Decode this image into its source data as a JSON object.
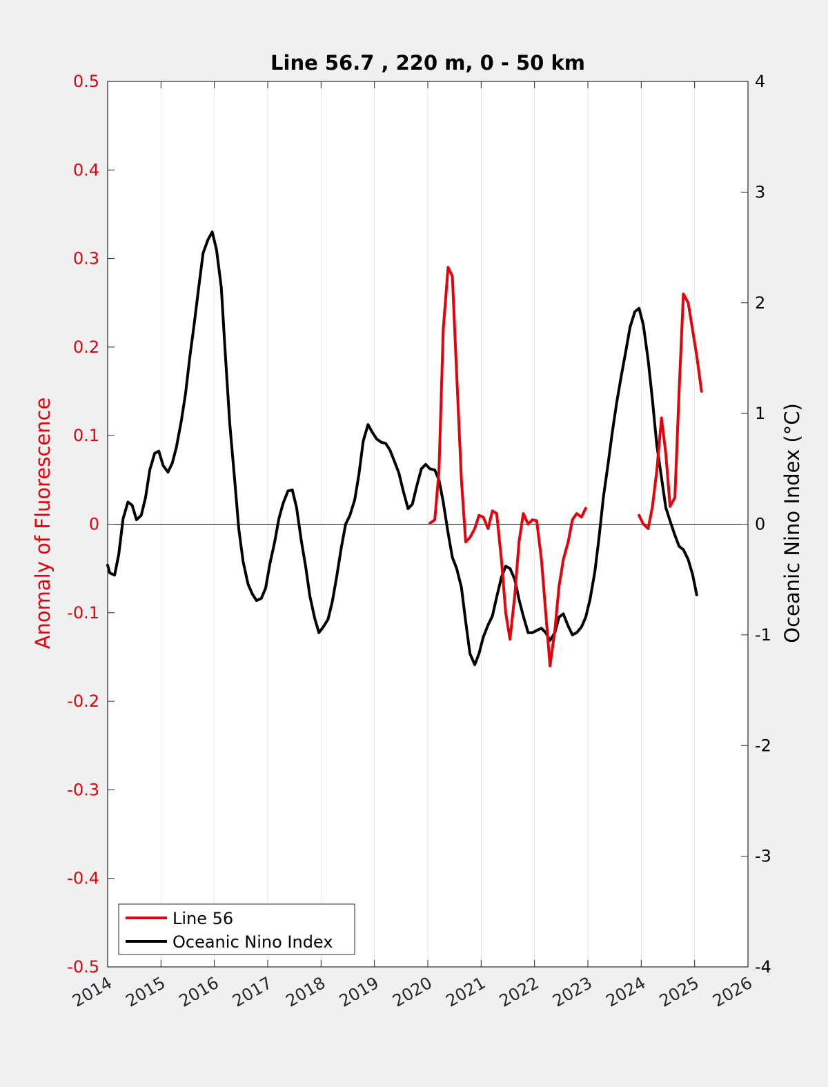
{
  "chart_data": {
    "type": "line",
    "title": "Line 56.7 , 220 m, 0 - 50 km",
    "ylabel_left": "Anomaly of Fluorescence",
    "ylabel_right": "Oceanic Nino Index (°C)",
    "xlim": [
      2014,
      2026
    ],
    "ylim_left": [
      -0.5,
      0.5
    ],
    "ylim_right": [
      -4,
      4
    ],
    "x_ticks": [
      "2014",
      "2015",
      "2016",
      "2017",
      "2018",
      "2019",
      "2020",
      "2021",
      "2022",
      "2023",
      "2024",
      "2025",
      "2026"
    ],
    "y_left_ticks": [
      "0.5",
      "0.4",
      "0.3",
      "0.2",
      "0.1",
      "0",
      "-0.1",
      "-0.2",
      "-0.3",
      "-0.4",
      "-0.5"
    ],
    "y_right_ticks": [
      "4",
      "3",
      "2",
      "1",
      "0",
      "-1",
      "-2",
      "-3",
      "-4"
    ],
    "grid": "vertical",
    "legend_position": "bottom-left",
    "colors": {
      "line56": "#e8000b",
      "oni": "#000000",
      "left_axis": "#e8000b",
      "right_axis": "#000000"
    },
    "series": [
      {
        "name": "Line 56",
        "axis": "left",
        "segments": [
          [
            [
              2020.04,
              0.001
            ],
            [
              2020.13,
              0.005
            ],
            [
              2020.21,
              0.06
            ],
            [
              2020.29,
              0.22
            ],
            [
              2020.38,
              0.29
            ],
            [
              2020.46,
              0.28
            ],
            [
              2020.54,
              0.17
            ],
            [
              2020.63,
              0.05
            ],
            [
              2020.71,
              -0.02
            ],
            [
              2020.79,
              -0.015
            ],
            [
              2020.88,
              -0.005
            ],
            [
              2020.96,
              0.01
            ],
            [
              2021.04,
              0.008
            ],
            [
              2021.13,
              -0.005
            ],
            [
              2021.21,
              0.015
            ],
            [
              2021.29,
              0.012
            ],
            [
              2021.38,
              -0.04
            ],
            [
              2021.46,
              -0.1
            ],
            [
              2021.54,
              -0.13
            ],
            [
              2021.63,
              -0.08
            ],
            [
              2021.71,
              -0.02
            ],
            [
              2021.79,
              0.012
            ],
            [
              2021.88,
              0.0
            ],
            [
              2021.96,
              0.005
            ],
            [
              2022.04,
              0.004
            ],
            [
              2022.13,
              -0.04
            ],
            [
              2022.21,
              -0.1
            ],
            [
              2022.29,
              -0.16
            ],
            [
              2022.38,
              -0.12
            ],
            [
              2022.46,
              -0.07
            ],
            [
              2022.54,
              -0.04
            ],
            [
              2022.63,
              -0.02
            ],
            [
              2022.71,
              0.005
            ],
            [
              2022.79,
              0.012
            ],
            [
              2022.88,
              0.008
            ],
            [
              2022.96,
              0.018
            ]
          ],
          [
            [
              2023.96,
              0.01
            ],
            [
              2024.04,
              0.0
            ],
            [
              2024.13,
              -0.005
            ],
            [
              2024.21,
              0.02
            ],
            [
              2024.29,
              0.06
            ],
            [
              2024.38,
              0.12
            ],
            [
              2024.46,
              0.08
            ],
            [
              2024.54,
              0.02
            ],
            [
              2024.63,
              0.03
            ],
            [
              2024.71,
              0.15
            ],
            [
              2024.79,
              0.26
            ],
            [
              2024.88,
              0.25
            ],
            [
              2024.96,
              0.22
            ],
            [
              2025.04,
              0.19
            ],
            [
              2025.13,
              0.15
            ]
          ]
        ]
      },
      {
        "name": "Oceanic Nino Index",
        "axis": "right",
        "segments": [
          [
            [
              2014.0,
              -0.37
            ],
            [
              2014.04,
              -0.44
            ],
            [
              2014.13,
              -0.46
            ],
            [
              2014.21,
              -0.27
            ],
            [
              2014.29,
              0.05
            ],
            [
              2014.38,
              0.2
            ],
            [
              2014.46,
              0.17
            ],
            [
              2014.54,
              0.04
            ],
            [
              2014.63,
              0.08
            ],
            [
              2014.71,
              0.24
            ],
            [
              2014.79,
              0.49
            ],
            [
              2014.88,
              0.64
            ],
            [
              2014.96,
              0.66
            ],
            [
              2015.04,
              0.53
            ],
            [
              2015.13,
              0.47
            ],
            [
              2015.21,
              0.55
            ],
            [
              2015.29,
              0.7
            ],
            [
              2015.38,
              0.93
            ],
            [
              2015.46,
              1.18
            ],
            [
              2015.54,
              1.51
            ],
            [
              2015.63,
              1.84
            ],
            [
              2015.71,
              2.15
            ],
            [
              2015.79,
              2.45
            ],
            [
              2015.88,
              2.57
            ],
            [
              2015.96,
              2.64
            ],
            [
              2016.04,
              2.48
            ],
            [
              2016.13,
              2.14
            ],
            [
              2016.21,
              1.5
            ],
            [
              2016.29,
              0.9
            ],
            [
              2016.38,
              0.4
            ],
            [
              2016.46,
              -0.05
            ],
            [
              2016.54,
              -0.34
            ],
            [
              2016.63,
              -0.54
            ],
            [
              2016.71,
              -0.63
            ],
            [
              2016.79,
              -0.69
            ],
            [
              2016.88,
              -0.67
            ],
            [
              2016.96,
              -0.58
            ],
            [
              2017.04,
              -0.36
            ],
            [
              2017.13,
              -0.16
            ],
            [
              2017.21,
              0.05
            ],
            [
              2017.29,
              0.19
            ],
            [
              2017.38,
              0.3
            ],
            [
              2017.46,
              0.31
            ],
            [
              2017.54,
              0.15
            ],
            [
              2017.63,
              -0.15
            ],
            [
              2017.71,
              -0.38
            ],
            [
              2017.79,
              -0.65
            ],
            [
              2017.88,
              -0.85
            ],
            [
              2017.96,
              -0.98
            ],
            [
              2018.04,
              -0.93
            ],
            [
              2018.13,
              -0.86
            ],
            [
              2018.21,
              -0.7
            ],
            [
              2018.29,
              -0.48
            ],
            [
              2018.38,
              -0.21
            ],
            [
              2018.46,
              0.0
            ],
            [
              2018.54,
              0.08
            ],
            [
              2018.63,
              0.22
            ],
            [
              2018.71,
              0.45
            ],
            [
              2018.79,
              0.75
            ],
            [
              2018.88,
              0.9
            ],
            [
              2018.96,
              0.83
            ],
            [
              2019.04,
              0.77
            ],
            [
              2019.13,
              0.74
            ],
            [
              2019.21,
              0.73
            ],
            [
              2019.29,
              0.67
            ],
            [
              2019.38,
              0.56
            ],
            [
              2019.46,
              0.46
            ],
            [
              2019.54,
              0.3
            ],
            [
              2019.63,
              0.14
            ],
            [
              2019.71,
              0.18
            ],
            [
              2019.79,
              0.34
            ],
            [
              2019.88,
              0.5
            ],
            [
              2019.96,
              0.54
            ],
            [
              2020.04,
              0.5
            ],
            [
              2020.13,
              0.49
            ],
            [
              2020.21,
              0.4
            ],
            [
              2020.29,
              0.2
            ],
            [
              2020.38,
              -0.08
            ],
            [
              2020.46,
              -0.3
            ],
            [
              2020.54,
              -0.4
            ],
            [
              2020.63,
              -0.57
            ],
            [
              2020.71,
              -0.88
            ],
            [
              2020.79,
              -1.17
            ],
            [
              2020.88,
              -1.27
            ],
            [
              2020.96,
              -1.17
            ],
            [
              2021.04,
              -1.02
            ],
            [
              2021.13,
              -0.91
            ],
            [
              2021.21,
              -0.83
            ],
            [
              2021.29,
              -0.66
            ],
            [
              2021.38,
              -0.48
            ],
            [
              2021.46,
              -0.38
            ],
            [
              2021.54,
              -0.4
            ],
            [
              2021.63,
              -0.5
            ],
            [
              2021.71,
              -0.68
            ],
            [
              2021.79,
              -0.83
            ],
            [
              2021.88,
              -0.98
            ],
            [
              2021.96,
              -0.98
            ],
            [
              2022.04,
              -0.96
            ],
            [
              2022.13,
              -0.94
            ],
            [
              2022.21,
              -0.98
            ],
            [
              2022.29,
              -1.05
            ],
            [
              2022.38,
              -0.98
            ],
            [
              2022.46,
              -0.84
            ],
            [
              2022.54,
              -0.81
            ],
            [
              2022.63,
              -0.92
            ],
            [
              2022.71,
              -1.0
            ],
            [
              2022.79,
              -0.98
            ],
            [
              2022.88,
              -0.93
            ],
            [
              2022.96,
              -0.84
            ],
            [
              2023.04,
              -0.68
            ],
            [
              2023.13,
              -0.43
            ],
            [
              2023.21,
              -0.12
            ],
            [
              2023.29,
              0.24
            ],
            [
              2023.38,
              0.55
            ],
            [
              2023.46,
              0.84
            ],
            [
              2023.54,
              1.1
            ],
            [
              2023.63,
              1.35
            ],
            [
              2023.71,
              1.56
            ],
            [
              2023.79,
              1.78
            ],
            [
              2023.88,
              1.92
            ],
            [
              2023.96,
              1.95
            ],
            [
              2024.04,
              1.8
            ],
            [
              2024.13,
              1.48
            ],
            [
              2024.21,
              1.12
            ],
            [
              2024.29,
              0.72
            ],
            [
              2024.38,
              0.42
            ],
            [
              2024.46,
              0.15
            ],
            [
              2024.54,
              0.03
            ],
            [
              2024.63,
              -0.1
            ],
            [
              2024.71,
              -0.2
            ],
            [
              2024.79,
              -0.23
            ],
            [
              2024.88,
              -0.32
            ],
            [
              2024.96,
              -0.45
            ],
            [
              2025.04,
              -0.64
            ]
          ]
        ]
      }
    ]
  }
}
